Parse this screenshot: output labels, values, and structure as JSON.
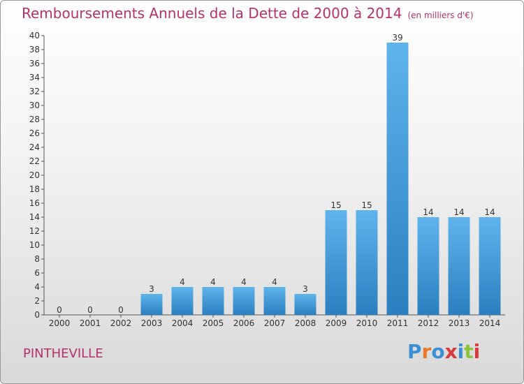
{
  "title": "Remboursements Annuels de la Dette de 2000 à 2014",
  "unit": "(en milliers d'€)",
  "location": "PINTHEVILLE",
  "logo": {
    "letters": [
      "P",
      "r",
      "o",
      "x",
      "i",
      "t",
      "i"
    ],
    "colors": [
      "#3b8fd6",
      "#e8782a",
      "#3b8fd6",
      "#d93a3a",
      "#3b8fd6",
      "#8cc43c",
      "#d93a3a"
    ]
  },
  "chart_data": {
    "type": "bar",
    "categories": [
      "2000",
      "2001",
      "2002",
      "2003",
      "2004",
      "2005",
      "2006",
      "2007",
      "2008",
      "2009",
      "2010",
      "2011",
      "2012",
      "2013",
      "2014"
    ],
    "values": [
      0,
      0,
      0,
      3,
      4,
      4,
      4,
      4,
      3,
      15,
      15,
      39,
      14,
      14,
      14
    ],
    "ylim": [
      0,
      40
    ],
    "yticks": [
      0,
      2,
      4,
      6,
      8,
      10,
      12,
      14,
      16,
      18,
      20,
      22,
      24,
      26,
      28,
      30,
      32,
      34,
      36,
      38,
      40
    ],
    "grid": false,
    "bar_color": "#3a97dc"
  }
}
